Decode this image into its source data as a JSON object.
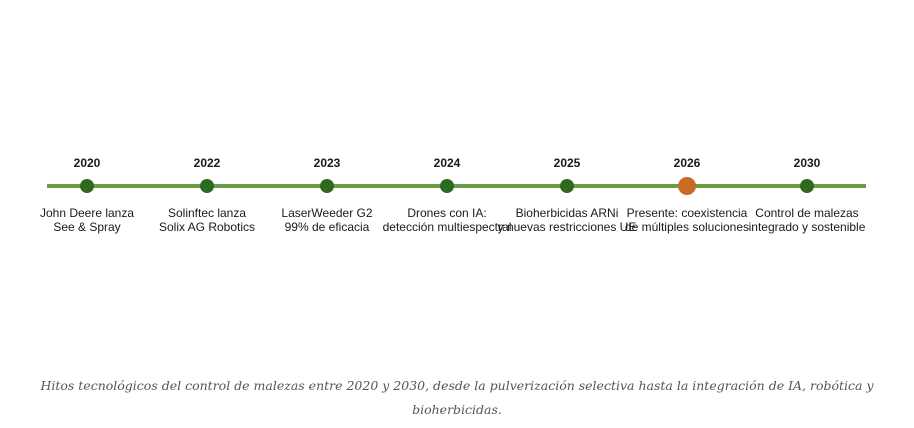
{
  "timeline": {
    "colors": {
      "line": "#6a9b45",
      "milestone": "#2f6b1f",
      "current": "#c96a26"
    },
    "milestones": [
      {
        "year": "2020",
        "line1": "John Deere lanza",
        "line2": "See & Spray",
        "current": false
      },
      {
        "year": "2022",
        "line1": "Solinftec lanza",
        "line2": "Solix AG Robotics",
        "current": false
      },
      {
        "year": "2023",
        "line1": "LaserWeeder G2",
        "line2": "99% de eficacia",
        "current": false
      },
      {
        "year": "2024",
        "line1": "Drones con IA:",
        "line2": "detección multiespectral",
        "current": false
      },
      {
        "year": "2025",
        "line1": "Bioherbicidas ARNi",
        "line2": "y nuevas restricciones UE",
        "current": false
      },
      {
        "year": "2026",
        "line1": "Presente: coexistencia",
        "line2": "de múltiples soluciones",
        "current": true
      },
      {
        "year": "2030",
        "line1": "Control de malezas",
        "line2": "integrado y sostenible",
        "current": false
      }
    ]
  },
  "caption": "Hitos tecnológicos del control de malezas entre 2020 y 2030, desde la pulverización selectiva hasta la integración de IA, robótica y bioherbicidas."
}
